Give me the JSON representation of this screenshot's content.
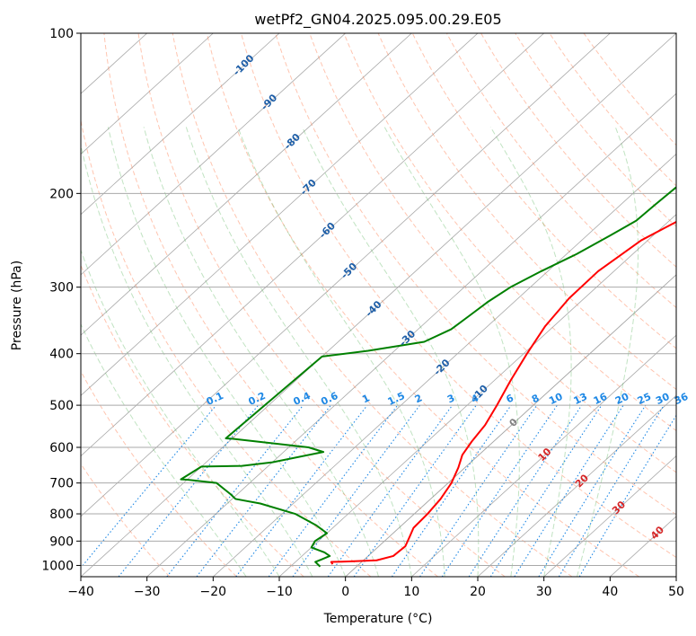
{
  "chart_data": {
    "type": "line",
    "title": "wetPf2_GN04.2025.095.00.29.E05",
    "xlabel": "Temperature (°C)",
    "ylabel": "Pressure (hPa)",
    "xlim": [
      -40,
      50
    ],
    "ylim": [
      1050,
      100
    ],
    "x_ticks": [
      -40,
      -30,
      -20,
      -10,
      0,
      10,
      20,
      30,
      40,
      50
    ],
    "x_tick_labels": [
      "−40",
      "−30",
      "−20",
      "−10",
      "0",
      "10",
      "20",
      "30",
      "40",
      "50"
    ],
    "y_ticks": [
      1000,
      900,
      800,
      700,
      600,
      500,
      400,
      300,
      200,
      100
    ],
    "y_tick_labels": [
      "1000",
      "900",
      "800",
      "700",
      "600",
      "500",
      "400",
      "300",
      "200",
      "100"
    ],
    "series": [
      {
        "name": "temperature",
        "color": "#ff0000",
        "points": [
          [
            -4.0,
            995
          ],
          [
            -4.6,
            985
          ],
          [
            -2.0,
            983
          ],
          [
            2.0,
            978
          ],
          [
            3.8,
            960
          ],
          [
            4.0,
            920
          ],
          [
            3.0,
            880
          ],
          [
            2.2,
            850
          ],
          [
            2.0,
            800
          ],
          [
            1.5,
            750
          ],
          [
            0.5,
            700
          ],
          [
            -1.0,
            655
          ],
          [
            -2.5,
            620
          ],
          [
            -3.3,
            585
          ],
          [
            -4.0,
            545
          ],
          [
            -5.5,
            500
          ],
          [
            -7.5,
            450
          ],
          [
            -9.5,
            400
          ],
          [
            -11.3,
            355
          ],
          [
            -12.3,
            315
          ],
          [
            -12.4,
            280
          ],
          [
            -11.0,
            245
          ],
          [
            -8.0,
            220
          ],
          [
            -3.5,
            205
          ],
          [
            -1.0,
            195
          ],
          [
            1.0,
            180
          ],
          [
            4.0,
            160
          ],
          [
            9.0,
            145
          ],
          [
            15.0,
            130
          ],
          [
            21.0,
            115
          ],
          [
            25.0,
            100
          ]
        ]
      },
      {
        "name": "dewpoint",
        "color": "#008000",
        "points": [
          [
            -5.5,
            1005
          ],
          [
            -7.0,
            985
          ],
          [
            -6.5,
            975
          ],
          [
            -5.8,
            960
          ],
          [
            -7.2,
            945
          ],
          [
            -10.0,
            925
          ],
          [
            -10.5,
            900
          ],
          [
            -10.0,
            870
          ],
          [
            -13.0,
            840
          ],
          [
            -18.0,
            800
          ],
          [
            -25.0,
            765
          ],
          [
            -29.5,
            750
          ],
          [
            -31.0,
            735
          ],
          [
            -35.0,
            700
          ],
          [
            -40.0,
            690
          ],
          [
            -41.0,
            689
          ],
          [
            -40.0,
            652
          ],
          [
            -34.0,
            650
          ],
          [
            -30.0,
            640
          ],
          [
            -24.0,
            612
          ],
          [
            -27.0,
            600
          ],
          [
            -40.0,
            578
          ],
          [
            -41.0,
            577
          ],
          [
            -40.0,
            405
          ],
          [
            -34.0,
            395
          ],
          [
            -27.0,
            380
          ],
          [
            -25.0,
            360
          ],
          [
            -24.5,
            340
          ],
          [
            -24.0,
            320
          ],
          [
            -23.0,
            300
          ],
          [
            -21.0,
            280
          ],
          [
            -18.5,
            260
          ],
          [
            -16.5,
            240
          ],
          [
            -15.0,
            225
          ],
          [
            -14.8,
            210
          ],
          [
            -14.5,
            195
          ],
          [
            -14.8,
            180
          ],
          [
            -13.5,
            170
          ],
          [
            -11.0,
            160
          ],
          [
            -8.0,
            150
          ],
          [
            -3.0,
            135
          ],
          [
            0.0,
            125
          ],
          [
            3.0,
            115
          ],
          [
            6.0,
            108
          ],
          [
            9.0,
            100
          ]
        ]
      }
    ],
    "background_lines": {
      "isotherms_every": 10,
      "dry_adiabats_theta_C": [
        -30,
        -20,
        -10,
        0,
        10,
        20,
        30,
        40,
        50,
        60,
        70,
        80,
        90,
        100,
        110,
        120,
        130,
        140,
        150
      ],
      "moist_adiabats_start_C": [
        -15,
        -10,
        -5,
        0,
        5,
        10,
        15,
        20,
        25,
        30,
        35
      ],
      "mixing_ratios": [
        0.1,
        0.2,
        0.4,
        0.6,
        1,
        1.5,
        2,
        3,
        4,
        6,
        8,
        10,
        13,
        16,
        20,
        25,
        30,
        36
      ],
      "mixing_ratio_labels": [
        "0.1",
        "0.2",
        "0.4",
        "0.6",
        "1",
        "1.5",
        "2",
        "3",
        "4",
        "6",
        "8",
        "10",
        "13",
        "16",
        "20",
        "25",
        "30",
        "36"
      ],
      "mixing_ratio_label_pressure": 500
    },
    "annotations": {
      "isotherm_labels": [
        {
          "text": "-100",
          "T": -100,
          "p": 115
        },
        {
          "text": "-90",
          "T": -90,
          "p": 135
        },
        {
          "text": "-80",
          "T": -80,
          "p": 160
        },
        {
          "text": "-70",
          "T": -70,
          "p": 195
        },
        {
          "text": "-60",
          "T": -60,
          "p": 235
        },
        {
          "text": "-50",
          "T": -50,
          "p": 280
        },
        {
          "text": "-40",
          "T": -40,
          "p": 330
        },
        {
          "text": "-30",
          "T": -30,
          "p": 375
        },
        {
          "text": "-20",
          "T": -20,
          "p": 425
        },
        {
          "text": "-10",
          "T": -10,
          "p": 475
        }
      ],
      "warm_labels": [
        {
          "text": "0",
          "T": 0,
          "p": 540,
          "color": "#808080"
        },
        {
          "text": "10",
          "T": 10,
          "p": 620,
          "color": "#d62728"
        },
        {
          "text": "20",
          "T": 20,
          "p": 695,
          "color": "#d62728"
        },
        {
          "text": "30",
          "T": 30,
          "p": 780,
          "color": "#d62728"
        },
        {
          "text": "40",
          "T": 40,
          "p": 870,
          "color": "#d62728"
        }
      ]
    }
  },
  "colors": {
    "isotherm": "#a9a9a9",
    "dry_adiabat": "#ff7f50",
    "moist_adiabat": "#4caf50",
    "mixing_ratio": "#1e88e5",
    "isotherm_label": "#1f5fa8",
    "zero_isotherm": "#d2b48c"
  }
}
